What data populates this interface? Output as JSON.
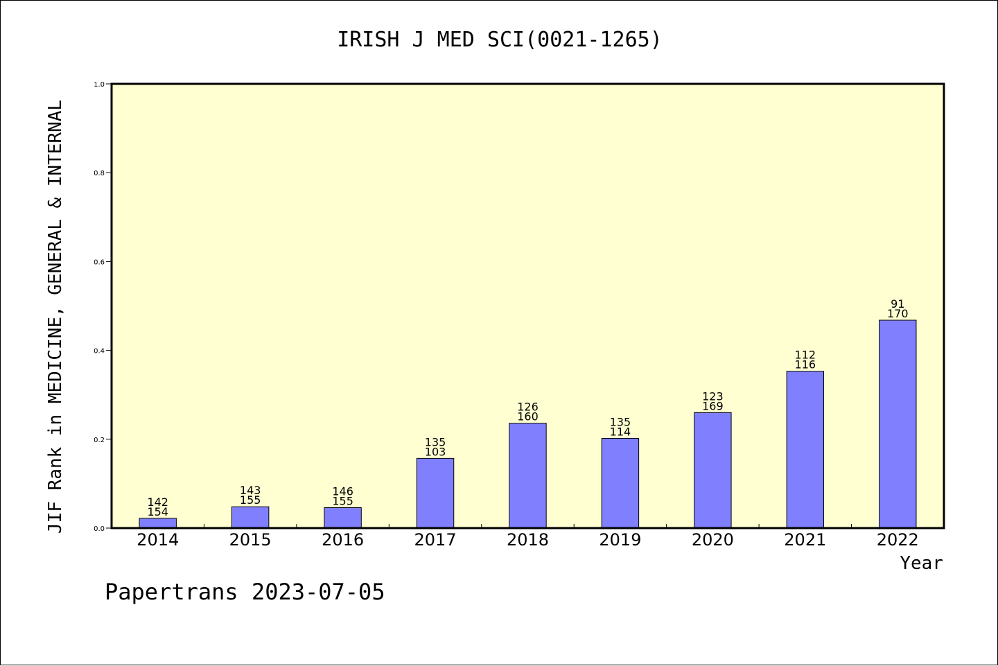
{
  "chart_data": {
    "type": "bar",
    "title": "IRISH J MED SCI(0021-1265)",
    "xlabel": "Year",
    "ylabel": "JIF Rank in MEDICINE, GENERAL & INTERNAL",
    "ylim": [
      0,
      1.0
    ],
    "yticks": [
      "0.0",
      "0.2",
      "0.4",
      "0.6",
      "0.8",
      "1.0"
    ],
    "categories": [
      "2014",
      "2015",
      "2016",
      "2017",
      "2018",
      "2019",
      "2020",
      "2021",
      "2022"
    ],
    "values": [
      0.022,
      0.048,
      0.046,
      0.157,
      0.236,
      0.202,
      0.26,
      0.353,
      0.468
    ],
    "label_top": [
      "142",
      "143",
      "146",
      "135",
      "126",
      "135",
      "123",
      "112",
      "91"
    ],
    "label_bottom": [
      "154",
      "155",
      "155",
      "103",
      "160",
      "114",
      "169",
      "116",
      "170"
    ],
    "grid": false,
    "colors": {
      "plot_background": "#ffffd2",
      "bar_fill": "#8080ff",
      "bar_stroke": "#000000"
    }
  },
  "footer": {
    "watermark": "Papertrans 2023-07-05"
  }
}
